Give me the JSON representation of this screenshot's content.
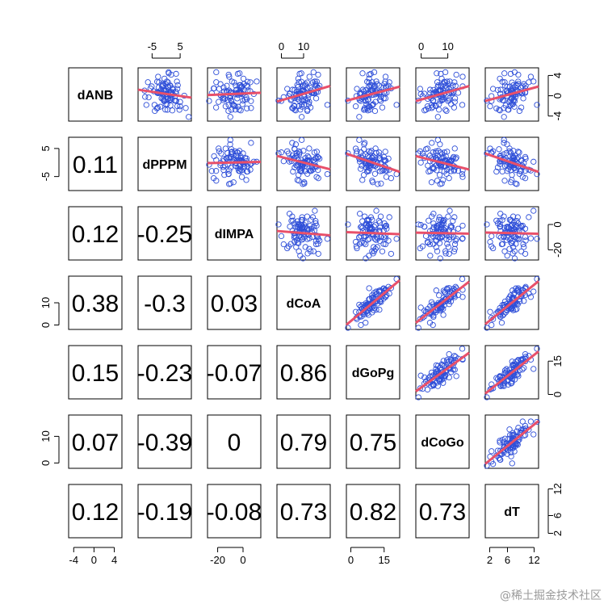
{
  "chart_data": {
    "type": "scatter",
    "layout": "pairs-matrix",
    "variables": [
      "dANB",
      "dPPPM",
      "dIMPA",
      "dCoA",
      "dGoPg",
      "dCoGo",
      "dT"
    ],
    "correlations": [
      {
        "row": "dPPPM",
        "col": "dANB",
        "text": "0.11"
      },
      {
        "row": "dIMPA",
        "col": "dANB",
        "text": "0.12"
      },
      {
        "row": "dIMPA",
        "col": "dPPPM",
        "text": "-0.25"
      },
      {
        "row": "dCoA",
        "col": "dANB",
        "text": "0.38"
      },
      {
        "row": "dCoA",
        "col": "dPPPM",
        "text": "-0.3"
      },
      {
        "row": "dCoA",
        "col": "dIMPA",
        "text": "0.03"
      },
      {
        "row": "dGoPg",
        "col": "dANB",
        "text": "0.15"
      },
      {
        "row": "dGoPg",
        "col": "dPPPM",
        "text": "-0.23"
      },
      {
        "row": "dGoPg",
        "col": "dIMPA",
        "text": "-0.07"
      },
      {
        "row": "dGoPg",
        "col": "dCoA",
        "text": "0.86"
      },
      {
        "row": "dCoGo",
        "col": "dANB",
        "text": "0.07"
      },
      {
        "row": "dCoGo",
        "col": "dPPPM",
        "text": "-0.39"
      },
      {
        "row": "dCoGo",
        "col": "dIMPA",
        "text": "0"
      },
      {
        "row": "dCoGo",
        "col": "dCoA",
        "text": "0.79"
      },
      {
        "row": "dCoGo",
        "col": "dGoPg",
        "text": "0.75"
      },
      {
        "row": "dT",
        "col": "dANB",
        "text": "0.12"
      },
      {
        "row": "dT",
        "col": "dPPPM",
        "text": "-0.19"
      },
      {
        "row": "dT",
        "col": "dIMPA",
        "text": "-0.08"
      },
      {
        "row": "dT",
        "col": "dCoA",
        "text": "0.73"
      },
      {
        "row": "dT",
        "col": "dGoPg",
        "text": "0.82"
      },
      {
        "row": "dT",
        "col": "dCoGo",
        "text": "0.73"
      }
    ],
    "axes": {
      "top": [
        {
          "variable": "dPPPM",
          "ticks": [
            "-5",
            "5"
          ],
          "values": [
            -5,
            5
          ]
        },
        {
          "variable": "dCoA",
          "ticks": [
            "0",
            "10"
          ],
          "values": [
            0,
            10
          ]
        },
        {
          "variable": "dCoGo",
          "ticks": [
            "0",
            "10"
          ],
          "values": [
            0,
            10
          ]
        }
      ],
      "bottom": [
        {
          "variable": "dANB",
          "ticks": [
            "-4",
            "0",
            "4"
          ],
          "values": [
            -4,
            0,
            4
          ]
        },
        {
          "variable": "dIMPA",
          "ticks": [
            "-20",
            "0"
          ],
          "values": [
            -20,
            0
          ]
        },
        {
          "variable": "dGoPg",
          "ticks": [
            "0",
            "15"
          ],
          "values": [
            0,
            15
          ]
        },
        {
          "variable": "dT",
          "ticks": [
            "2",
            "6",
            "12"
          ],
          "values": [
            2,
            6,
            12
          ]
        }
      ],
      "left": [
        {
          "variable": "dPPPM",
          "ticks": [
            "-5",
            "5"
          ],
          "values": [
            -5,
            5
          ]
        },
        {
          "variable": "dCoA",
          "ticks": [
            "0",
            "10"
          ],
          "values": [
            0,
            10
          ]
        },
        {
          "variable": "dCoGo",
          "ticks": [
            "0",
            "10"
          ],
          "values": [
            0,
            10
          ]
        }
      ],
      "right": [
        {
          "variable": "dANB",
          "ticks": [
            "-4",
            "0",
            "4"
          ],
          "values": [
            -4,
            0,
            4
          ]
        },
        {
          "variable": "dIMPA",
          "ticks": [
            "-20",
            "0"
          ],
          "values": [
            -20,
            0
          ]
        },
        {
          "variable": "dGoPg",
          "ticks": [
            "0",
            "15"
          ],
          "values": [
            0,
            15
          ]
        },
        {
          "variable": "dT",
          "ticks": [
            "2",
            "6",
            "12"
          ],
          "values": [
            2,
            6,
            12
          ]
        }
      ]
    },
    "ranges": {
      "dANB": [
        -5,
        5.5
      ],
      "dPPPM": [
        -10,
        9
      ],
      "dIMPA": [
        -28,
        14
      ],
      "dCoA": [
        -2,
        22
      ],
      "dGoPg": [
        -2,
        22
      ],
      "dCoGo": [
        -2,
        18
      ],
      "dT": [
        1,
        13
      ]
    },
    "point_color": "#2f4fd8",
    "line_color": "#e8506a",
    "n_points": 90
  },
  "watermark": "@稀土掘金技术社区"
}
